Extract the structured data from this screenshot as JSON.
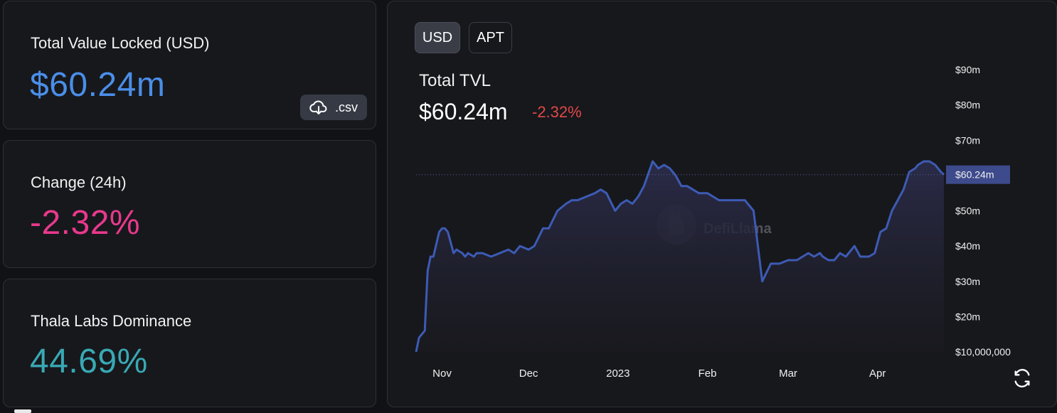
{
  "stats": {
    "tvl": {
      "label": "Total Value Locked (USD)",
      "value": "$60.24m",
      "csv_label": ".csv"
    },
    "change": {
      "label": "Change (24h)",
      "value": "-2.32%"
    },
    "dominance": {
      "label": "Thala Labs Dominance",
      "value": "44.69%"
    }
  },
  "chart_panel": {
    "toggles": [
      "USD",
      "APT"
    ],
    "selected": "USD",
    "title": "Total TVL",
    "value": "$60.24m",
    "change": "-2.32%",
    "watermark": "DefiLlama",
    "current_marker": "$60.24m"
  },
  "colors": {
    "tvl_value": "#4a8ee8",
    "change_value": "#e8398c",
    "dominance_value": "#38a9b4",
    "line": "#3d5bb5",
    "marker_bg": "#3d4a8c",
    "negative": "#e04848"
  },
  "icons": {
    "csv": "cloud-download-icon",
    "refresh": "refresh-icon",
    "watermark": "llama-logo-icon"
  },
  "chart_data": {
    "type": "area",
    "title": "Total TVL",
    "xlabel": "",
    "ylabel": "",
    "x_ticks": [
      {
        "label": "Nov",
        "x": "2022-11-01"
      },
      {
        "label": "Dec",
        "x": "2022-12-01"
      },
      {
        "label": "2023",
        "x": "2023-01-01"
      },
      {
        "label": "Feb",
        "x": "2023-02-01"
      },
      {
        "label": "Mar",
        "x": "2023-03-01"
      },
      {
        "label": "Apr",
        "x": "2023-04-01"
      }
    ],
    "y_ticks": [
      {
        "label": "$10,000,000",
        "v": 10
      },
      {
        "label": "$20m",
        "v": 20
      },
      {
        "label": "$30m",
        "v": 30
      },
      {
        "label": "$40m",
        "v": 40
      },
      {
        "label": "$50m",
        "v": 50
      },
      {
        "label": "$60m",
        "v": 60
      },
      {
        "label": "$70m",
        "v": 70
      },
      {
        "label": "$80m",
        "v": 80
      },
      {
        "label": "$90m",
        "v": 90
      }
    ],
    "ylim": [
      10,
      90
    ],
    "y_unit": "$m",
    "current_value": 60.24,
    "series": [
      {
        "x": [
          "2022-10-23",
          "2022-10-24",
          "2022-10-26",
          "2022-10-27",
          "2022-10-28",
          "2022-10-29",
          "2022-10-31",
          "2022-11-01",
          "2022-11-02",
          "2022-11-03",
          "2022-11-05",
          "2022-11-06",
          "2022-11-08",
          "2022-11-09",
          "2022-11-10",
          "2022-11-12",
          "2022-11-13",
          "2022-11-15",
          "2022-11-18",
          "2022-11-21",
          "2022-11-24",
          "2022-11-26",
          "2022-11-28",
          "2022-12-01",
          "2022-12-03",
          "2022-12-06",
          "2022-12-08",
          "2022-12-11",
          "2022-12-14",
          "2022-12-16",
          "2022-12-18",
          "2022-12-21",
          "2022-12-24",
          "2022-12-26",
          "2022-12-28",
          "2022-12-31",
          "2023-01-02",
          "2023-01-04",
          "2023-01-06",
          "2023-01-08",
          "2023-01-10",
          "2023-01-13",
          "2023-01-15",
          "2023-01-17",
          "2023-01-19",
          "2023-01-21",
          "2023-01-23",
          "2023-01-25",
          "2023-01-27",
          "2023-01-29",
          "2023-02-01",
          "2023-02-03",
          "2023-02-05",
          "2023-02-07",
          "2023-02-09",
          "2023-02-12",
          "2023-02-14",
          "2023-02-17",
          "2023-02-20",
          "2023-02-23",
          "2023-02-26",
          "2023-03-01",
          "2023-03-04",
          "2023-03-08",
          "2023-03-10",
          "2023-03-12",
          "2023-03-13",
          "2023-03-15",
          "2023-03-17",
          "2023-03-19",
          "2023-03-21",
          "2023-03-24",
          "2023-03-26",
          "2023-03-29",
          "2023-03-31",
          "2023-04-02",
          "2023-04-04",
          "2023-04-06",
          "2023-04-08",
          "2023-04-10",
          "2023-04-12",
          "2023-04-14",
          "2023-04-15",
          "2023-04-17",
          "2023-04-19",
          "2023-04-21",
          "2023-04-23",
          "2023-04-24"
        ],
        "y": [
          10,
          14,
          16,
          33,
          37,
          37,
          44,
          45,
          45,
          44,
          38,
          39,
          38,
          37,
          38,
          37,
          38,
          38,
          37,
          38,
          39,
          38,
          40,
          39,
          40,
          45,
          45,
          50,
          52,
          53,
          53,
          54,
          55,
          56,
          55,
          50,
          52,
          53,
          52,
          54,
          57,
          64,
          62,
          63,
          62,
          60,
          57,
          57,
          56,
          55,
          55,
          54,
          53,
          53,
          53,
          53,
          53,
          50,
          30,
          35,
          35,
          36,
          36,
          38,
          37,
          38,
          37,
          36,
          36,
          38,
          37,
          40,
          37,
          37,
          38,
          44,
          45,
          50,
          53,
          56,
          61,
          62,
          63,
          64,
          64,
          63,
          61,
          60.24
        ]
      }
    ],
    "grid": false,
    "legend": "none"
  }
}
